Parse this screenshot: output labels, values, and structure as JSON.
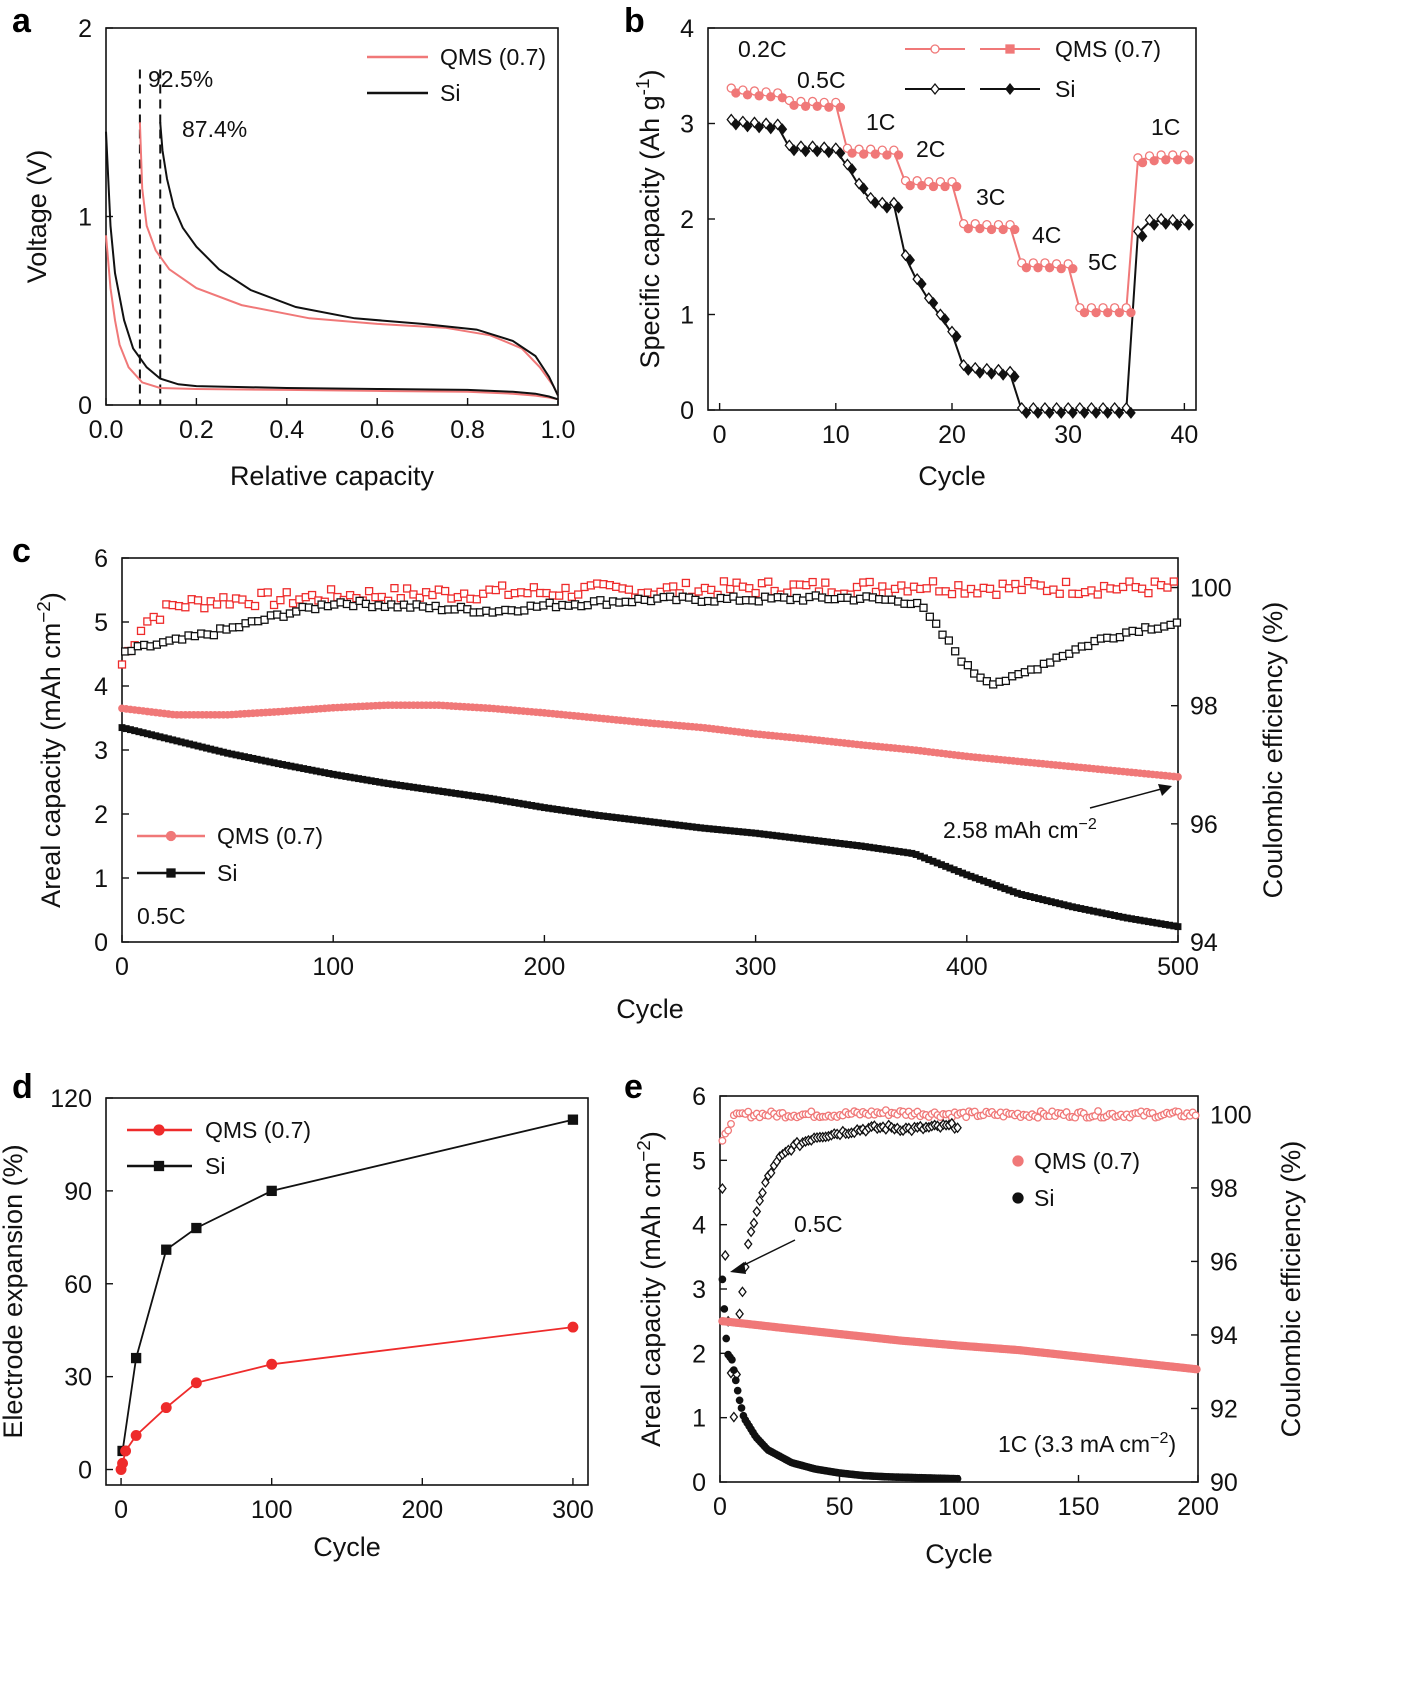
{
  "colors": {
    "qms": "#ee2b2b",
    "qms_light": "#f07878",
    "si": "#111111"
  },
  "chart_data": [
    {
      "id": "a",
      "panel_label": "a",
      "type": "line",
      "xlabel": "Relative capacity",
      "ylabel": "Voltage (V)",
      "xlim": [
        0.0,
        1.0
      ],
      "ylim": [
        0,
        2
      ],
      "xticks": [
        "0.0",
        "0.2",
        "0.4",
        "0.6",
        "0.8",
        "1.0"
      ],
      "yticks": [
        "0",
        "1",
        "2"
      ],
      "legend": [
        "QMS (0.7)",
        "Si"
      ],
      "annotations": {
        "qms_ice": "92.5%",
        "si_ice": "87.4%"
      },
      "series": [
        {
          "name": "QMS (0.7) discharge",
          "x": [
            0.0,
            0.01,
            0.02,
            0.03,
            0.05,
            0.08,
            0.12,
            0.2,
            0.4,
            0.6,
            0.8,
            0.9,
            0.95,
            0.98,
            1.0
          ],
          "y": [
            0.9,
            0.62,
            0.45,
            0.32,
            0.2,
            0.12,
            0.09,
            0.085,
            0.08,
            0.075,
            0.07,
            0.06,
            0.05,
            0.04,
            0.03
          ]
        },
        {
          "name": "QMS (0.7) charge",
          "x": [
            0.075,
            0.08,
            0.09,
            0.11,
            0.14,
            0.2,
            0.3,
            0.45,
            0.6,
            0.75,
            0.85,
            0.92,
            0.96,
            0.99,
            1.0
          ],
          "y": [
            1.5,
            1.15,
            0.95,
            0.82,
            0.72,
            0.62,
            0.53,
            0.46,
            0.43,
            0.41,
            0.37,
            0.3,
            0.2,
            0.1,
            0.05
          ]
        },
        {
          "name": "Si discharge",
          "x": [
            0.0,
            0.01,
            0.02,
            0.04,
            0.06,
            0.09,
            0.12,
            0.16,
            0.2,
            0.4,
            0.6,
            0.8,
            0.9,
            0.95,
            0.98,
            1.0
          ],
          "y": [
            1.45,
            0.95,
            0.7,
            0.45,
            0.3,
            0.2,
            0.14,
            0.11,
            0.1,
            0.09,
            0.085,
            0.08,
            0.07,
            0.06,
            0.045,
            0.03
          ]
        },
        {
          "name": "Si charge",
          "x": [
            0.12,
            0.125,
            0.135,
            0.15,
            0.17,
            0.2,
            0.25,
            0.32,
            0.42,
            0.55,
            0.7,
            0.82,
            0.9,
            0.95,
            0.98,
            1.0
          ],
          "y": [
            1.5,
            1.35,
            1.2,
            1.05,
            0.94,
            0.84,
            0.72,
            0.61,
            0.52,
            0.46,
            0.43,
            0.4,
            0.34,
            0.26,
            0.15,
            0.05
          ]
        }
      ],
      "dashed_lines_x": [
        0.075,
        0.12
      ]
    },
    {
      "id": "b",
      "panel_label": "b",
      "type": "scatter",
      "xlabel": "Cycle",
      "ylabel": "Specific capacity (Ah g",
      "ylabel_sup": "-1",
      "ylabel_close": ")",
      "xlim": [
        -1,
        41
      ],
      "ylim": [
        0,
        4
      ],
      "xticks": [
        "0",
        "10",
        "20",
        "30",
        "40"
      ],
      "yticks": [
        "0",
        "1",
        "2",
        "3",
        "4"
      ],
      "legend": [
        "QMS (0.7)",
        "Si"
      ],
      "rate_labels": [
        "0.2C",
        "0.5C",
        "1C",
        "2C",
        "3C",
        "4C",
        "5C",
        "1C"
      ],
      "series": [
        {
          "name": "QMS (0.7)",
          "x": [
            1,
            2,
            3,
            4,
            5,
            6,
            7,
            8,
            9,
            10,
            11,
            12,
            13,
            14,
            15,
            16,
            17,
            18,
            19,
            20,
            21,
            22,
            23,
            24,
            25,
            26,
            27,
            28,
            29,
            30,
            31,
            32,
            33,
            34,
            35,
            36,
            37,
            38,
            39,
            40
          ],
          "y": [
            3.35,
            3.33,
            3.32,
            3.31,
            3.3,
            3.22,
            3.21,
            3.21,
            3.2,
            3.2,
            2.72,
            2.71,
            2.71,
            2.7,
            2.7,
            2.38,
            2.38,
            2.37,
            2.37,
            2.37,
            1.93,
            1.93,
            1.92,
            1.92,
            1.92,
            1.52,
            1.52,
            1.52,
            1.51,
            1.51,
            1.05,
            1.05,
            1.05,
            1.05,
            1.05,
            2.62,
            2.64,
            2.65,
            2.65,
            2.65
          ]
        },
        {
          "name": "Si",
          "x": [
            1,
            2,
            3,
            4,
            5,
            6,
            7,
            8,
            9,
            10,
            11,
            12,
            13,
            14,
            15,
            16,
            17,
            18,
            19,
            20,
            21,
            22,
            23,
            24,
            25,
            26,
            27,
            28,
            29,
            30,
            31,
            32,
            33,
            34,
            35,
            36,
            37,
            38,
            39,
            40
          ],
          "y": [
            3.02,
            3.0,
            2.99,
            2.98,
            2.97,
            2.75,
            2.74,
            2.74,
            2.73,
            2.72,
            2.55,
            2.35,
            2.2,
            2.15,
            2.15,
            1.6,
            1.35,
            1.15,
            0.98,
            0.8,
            0.45,
            0.42,
            0.41,
            0.4,
            0.38,
            0.0,
            0.0,
            0.0,
            0.0,
            0.0,
            0.0,
            0.0,
            0.0,
            0.0,
            0.0,
            1.85,
            1.97,
            1.98,
            1.97,
            1.97
          ]
        }
      ]
    },
    {
      "id": "c",
      "panel_label": "c",
      "type": "scatter",
      "xlabel": "Cycle",
      "ylabel": "Areal capacity (mAh cm",
      "ylabel_sup": "−2",
      "ylabel_close": ")",
      "y2label": "Coulombic efficiency (%)",
      "xlim": [
        0,
        500
      ],
      "ylim": [
        0,
        6
      ],
      "y2lim": [
        94,
        100.5
      ],
      "xticks": [
        "0",
        "100",
        "200",
        "300",
        "400",
        "500"
      ],
      "yticks": [
        "0",
        "1",
        "2",
        "3",
        "4",
        "5",
        "6"
      ],
      "y2ticks": [
        "94",
        "96",
        "98",
        "100"
      ],
      "legend": [
        "QMS (0.7)",
        "Si"
      ],
      "rate_label": "0.5C",
      "annotation": {
        "text": "2.58 mAh cm",
        "sup": "−2"
      },
      "series": [
        {
          "name": "QMS (0.7) capacity",
          "x": [
            0,
            25,
            50,
            75,
            100,
            125,
            150,
            175,
            200,
            225,
            250,
            275,
            300,
            325,
            350,
            375,
            400,
            425,
            450,
            475,
            500
          ],
          "y": [
            3.65,
            3.55,
            3.55,
            3.6,
            3.66,
            3.7,
            3.7,
            3.65,
            3.58,
            3.5,
            3.42,
            3.35,
            3.25,
            3.17,
            3.08,
            3.0,
            2.9,
            2.82,
            2.74,
            2.66,
            2.58
          ]
        },
        {
          "name": "Si capacity",
          "x": [
            0,
            25,
            50,
            75,
            100,
            125,
            150,
            175,
            200,
            225,
            250,
            275,
            300,
            325,
            350,
            375,
            400,
            425,
            450,
            475,
            500
          ],
          "y": [
            3.35,
            3.15,
            2.95,
            2.78,
            2.62,
            2.48,
            2.36,
            2.24,
            2.1,
            1.98,
            1.88,
            1.78,
            1.7,
            1.6,
            1.5,
            1.38,
            1.05,
            0.75,
            0.55,
            0.38,
            0.24
          ]
        },
        {
          "name": "QMS (0.7) CE",
          "x": [
            0,
            10,
            25,
            50,
            75,
            100,
            125,
            150,
            175,
            200,
            225,
            250,
            275,
            300,
            325,
            350,
            375,
            400,
            425,
            450,
            475,
            500
          ],
          "y": [
            98.7,
            99.4,
            99.7,
            99.8,
            99.8,
            99.85,
            99.88,
            99.9,
            99.92,
            99.92,
            99.95,
            99.95,
            99.97,
            100.0,
            100.0,
            100.0,
            100.05,
            100.0,
            100.0,
            100.0,
            100.0,
            100.0
          ]
        },
        {
          "name": "Si CE",
          "x": [
            0,
            10,
            25,
            50,
            75,
            100,
            125,
            150,
            175,
            200,
            225,
            250,
            275,
            300,
            325,
            350,
            375,
            385,
            400,
            410,
            420,
            440,
            460,
            480,
            500
          ],
          "y": [
            98.9,
            99.0,
            99.1,
            99.3,
            99.55,
            99.75,
            99.7,
            99.65,
            99.6,
            99.7,
            99.75,
            99.8,
            99.8,
            99.8,
            99.82,
            99.82,
            99.75,
            99.3,
            98.6,
            98.4,
            98.45,
            98.8,
            99.1,
            99.3,
            99.4
          ]
        }
      ]
    },
    {
      "id": "d",
      "panel_label": "d",
      "type": "line",
      "xlabel": "Cycle",
      "ylabel": "Electrode expansion (%)",
      "xlim": [
        -10,
        310
      ],
      "ylim": [
        -5,
        120
      ],
      "xticks": [
        "0",
        "100",
        "200",
        "300"
      ],
      "yticks": [
        "0",
        "30",
        "60",
        "90",
        "120"
      ],
      "legend": [
        "QMS (0.7)",
        "Si"
      ],
      "series": [
        {
          "name": "QMS (0.7)",
          "x": [
            0,
            1,
            3,
            10,
            30,
            50,
            100,
            300
          ],
          "y": [
            0,
            2,
            6,
            11,
            20,
            28,
            34,
            46
          ]
        },
        {
          "name": "Si",
          "x": [
            1,
            10,
            30,
            50,
            100,
            300
          ],
          "y": [
            6,
            36,
            71,
            78,
            90,
            113
          ]
        }
      ]
    },
    {
      "id": "e",
      "panel_label": "e",
      "type": "scatter",
      "xlabel": "Cycle",
      "ylabel": "Areal capacity (mAh cm",
      "ylabel_sup": "−2",
      "ylabel_close": ")",
      "y2label": "Coulombic efficiency (%)",
      "xlim": [
        0,
        200
      ],
      "ylim": [
        0,
        6
      ],
      "y2lim": [
        90,
        100.5
      ],
      "xticks": [
        "0",
        "50",
        "100",
        "150",
        "200"
      ],
      "yticks": [
        "0",
        "1",
        "2",
        "3",
        "4",
        "5",
        "6"
      ],
      "y2ticks": [
        "90",
        "92",
        "94",
        "96",
        "98",
        "100"
      ],
      "legend": [
        "QMS (0.7)",
        "Si"
      ],
      "rate_label": "1C (3.3 mA cm",
      "rate_label_sup": "−2",
      "rate_label_close": ")",
      "annotation": "0.5C",
      "series": [
        {
          "name": "QMS (0.7) capacity",
          "x": [
            1,
            25,
            50,
            75,
            100,
            125,
            150,
            175,
            200
          ],
          "y": [
            2.5,
            2.4,
            2.3,
            2.2,
            2.12,
            2.05,
            1.95,
            1.85,
            1.75
          ]
        },
        {
          "name": "Si capacity",
          "x": [
            1,
            3,
            5,
            8,
            10,
            15,
            20,
            30,
            40,
            50,
            60,
            70,
            80,
            90,
            100
          ],
          "y": [
            3.15,
            2.0,
            1.9,
            1.3,
            1.0,
            0.7,
            0.5,
            0.3,
            0.2,
            0.14,
            0.1,
            0.08,
            0.07,
            0.06,
            0.05
          ]
        },
        {
          "name": "QMS (0.7) CE",
          "x": [
            1,
            5,
            10,
            20,
            30,
            50,
            70,
            100,
            130,
            160,
            200
          ],
          "y": [
            99.2,
            99.9,
            100.0,
            100.0,
            100.0,
            100.0,
            100.05,
            100.0,
            100.0,
            100.0,
            100.0
          ]
        },
        {
          "name": "Si CE",
          "x": [
            1,
            4,
            6,
            8,
            10,
            12,
            15,
            20,
            25,
            30,
            40,
            50,
            60,
            70,
            80,
            90,
            100
          ],
          "y": [
            98.0,
            93.5,
            91.5,
            94.5,
            95.5,
            96.5,
            97.3,
            98.3,
            98.8,
            99.1,
            99.4,
            99.5,
            99.6,
            99.65,
            99.6,
            99.65,
            99.7
          ]
        }
      ]
    }
  ]
}
